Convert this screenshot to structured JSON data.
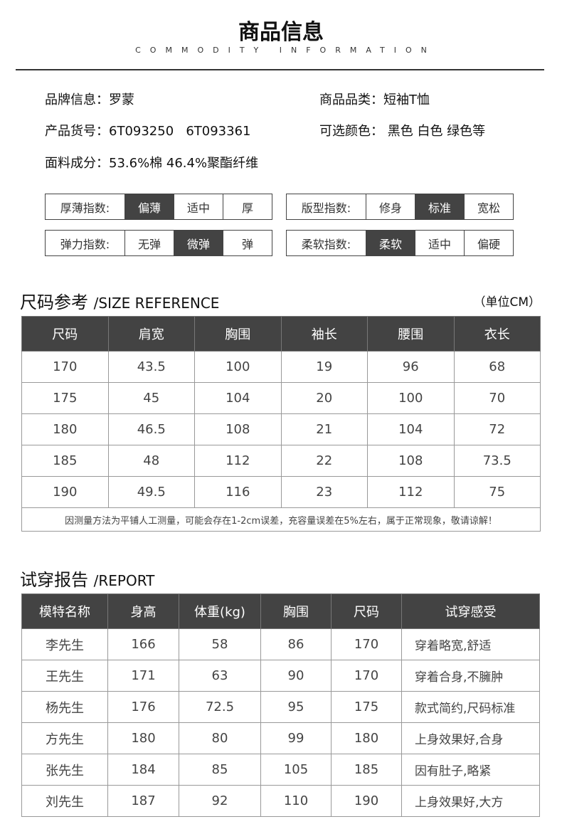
{
  "header": {
    "title": "商品信息",
    "subtitle": "COMMODITY INFORMATION"
  },
  "info": {
    "brand": "品牌信息：罗蒙",
    "category": "商品品类：短袖T恤",
    "item_no": "产品货号：6T093250   6T093361",
    "colors": "可选颜色： 黑色 白色 绿色等",
    "fabric": "面料成分：53.6%棉 46.4%聚酯纤维"
  },
  "indices": [
    {
      "label": "厚薄指数:",
      "options": [
        "偏薄",
        "适中",
        "厚"
      ],
      "selected": "偏薄"
    },
    {
      "label": "版型指数:",
      "options": [
        "修身",
        "标准",
        "宽松"
      ],
      "selected": "标准"
    },
    {
      "label": "弹力指数:",
      "options": [
        "无弹",
        "微弹",
        "弹"
      ],
      "selected": "微弹"
    },
    {
      "label": "柔软指数:",
      "options": [
        "柔软",
        "适中",
        "偏硬"
      ],
      "selected": "柔软"
    }
  ],
  "size": {
    "title": "尺码参考",
    "title_en": "/SIZE REFERENCE",
    "unit": "（单位CM）",
    "headers": [
      "尺码",
      "肩宽",
      "胸围",
      "袖长",
      "腰围",
      "衣长"
    ],
    "rows": [
      [
        "170",
        "43.5",
        "100",
        "19",
        "96",
        "68"
      ],
      [
        "175",
        "45",
        "104",
        "20",
        "100",
        "70"
      ],
      [
        "180",
        "46.5",
        "108",
        "21",
        "104",
        "72"
      ],
      [
        "185",
        "48",
        "112",
        "22",
        "108",
        "73.5"
      ],
      [
        "190",
        "49.5",
        "116",
        "23",
        "112",
        "75"
      ]
    ],
    "note": "因测量方法为平铺人工测量，可能会存在1-2cm误差，充容量误差在5%左右，属于正常现象，敬请谅解！"
  },
  "report": {
    "title": "试穿报告",
    "title_en": "/REPORT",
    "headers": [
      "模特名称",
      "身高",
      "体重(kg)",
      "胸围",
      "尺码",
      "试穿感受"
    ],
    "rows": [
      [
        "李先生",
        "166",
        "58",
        "86",
        "170",
        "穿着略宽,舒适"
      ],
      [
        "王先生",
        "171",
        "63",
        "90",
        "170",
        "穿着合身,不臃肿"
      ],
      [
        "杨先生",
        "176",
        "72.5",
        "95",
        "175",
        "款式简约,尺码标准"
      ],
      [
        "方先生",
        "180",
        "80",
        "99",
        "180",
        "上身效果好,合身"
      ],
      [
        "张先生",
        "184",
        "85",
        "105",
        "185",
        "因有肚子,略紧"
      ],
      [
        "刘先生",
        "187",
        "92",
        "110",
        "190",
        "上身效果好,大方"
      ]
    ]
  }
}
